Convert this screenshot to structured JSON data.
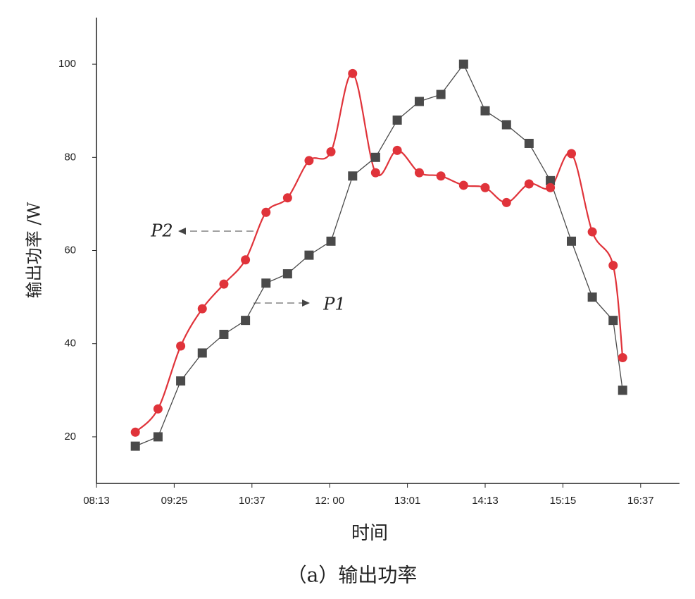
{
  "chart_data": {
    "type": "line",
    "x_label": "时间",
    "y_label": "输出功率 /W",
    "caption": "（a）输出功率",
    "annotations": [
      "P2",
      "P1"
    ],
    "x": [
      529,
      550,
      571,
      591,
      611,
      631,
      652,
      675,
      698,
      721,
      738,
      756,
      773,
      792,
      812,
      833,
      853,
      870,
      888,
      905,
      924,
      946,
      968,
      978
    ],
    "series": [
      {
        "name": "P1",
        "color": "#4a4a4a",
        "marker": "square",
        "smooth": false,
        "values": [
          18,
          20,
          32,
          38,
          42,
          45,
          53,
          55,
          59,
          62,
          76,
          80,
          88,
          92,
          93.5,
          100,
          90,
          87,
          83,
          75,
          62,
          50,
          45,
          30
        ]
      },
      {
        "name": "P2",
        "color": "#e0333a",
        "marker": "circle",
        "smooth": true,
        "values": [
          21,
          26,
          39.5,
          47.5,
          52.8,
          58,
          68.2,
          71.3,
          79.3,
          81.2,
          98,
          76.7,
          81.5,
          76.7,
          76,
          74,
          73.5,
          70.3,
          74.3,
          73.5,
          80.8,
          64,
          56.8,
          37
        ]
      }
    ],
    "xlim": [
      493,
      1036
    ],
    "xticks": [
      {
        "value": 493,
        "label": "08:13"
      },
      {
        "value": 565,
        "label": "09:25"
      },
      {
        "value": 637,
        "label": "10:37"
      },
      {
        "value": 720,
        "label": "12: 00"
      },
      {
        "value": 781,
        "label": "13:01"
      },
      {
        "value": 853,
        "label": "14:13"
      },
      {
        "value": 915,
        "label": "15:15"
      },
      {
        "value": 997,
        "label": "16:37"
      }
    ],
    "ylim": [
      10,
      110
    ],
    "yticks": [
      20,
      40,
      60,
      80,
      100
    ],
    "grid": false
  }
}
